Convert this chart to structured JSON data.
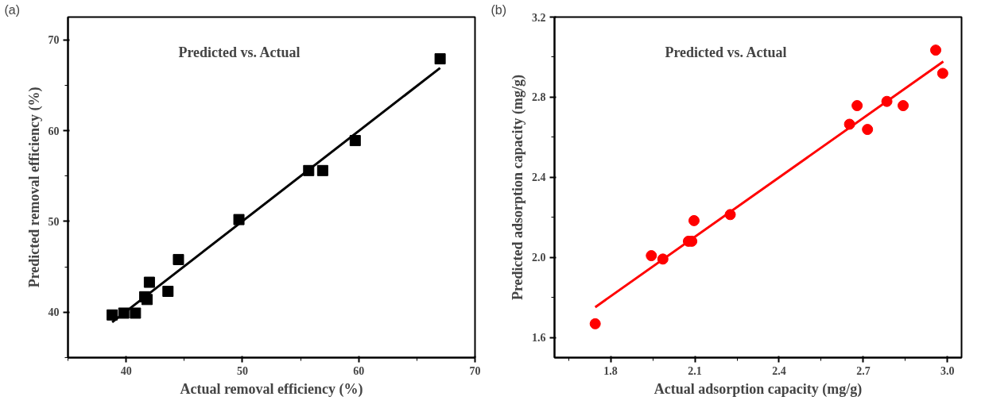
{
  "chart_data": [
    {
      "type": "scatter",
      "title": "Predicted vs. Actual",
      "xlabel": "Actual removal efficiency (%)",
      "ylabel": "Predicted removal efficiency (%)",
      "annotations": [
        "(a)"
      ],
      "grid": false,
      "xlim": [
        35,
        70
      ],
      "ylim": [
        35,
        72.5
      ],
      "xticks": [
        40,
        50,
        60,
        70
      ],
      "yticks": [
        40,
        50,
        60,
        70
      ],
      "series": [
        {
          "color": "#000000",
          "marker": "square",
          "x": [
            38.8,
            39.8,
            40.8,
            41.6,
            41.8,
            42.0,
            43.6,
            44.5,
            49.7,
            55.7,
            56.9,
            59.7,
            67.0
          ],
          "values": [
            39.7,
            39.9,
            39.9,
            41.7,
            41.4,
            43.3,
            42.3,
            45.8,
            50.2,
            55.6,
            55.6,
            58.9,
            67.9
          ]
        },
        {
          "type": "line",
          "color": "#000000",
          "marker": "none",
          "x": [
            38.8,
            67.0
          ],
          "values": [
            38.9,
            66.9
          ]
        }
      ]
    },
    {
      "type": "scatter",
      "title": "Predicted vs. Actual",
      "xlabel": "Actual adsorption capacity (mg/g)",
      "ylabel": "Predicted adsorption capacity (mg/g)",
      "annotations": [
        "(b)"
      ],
      "grid": false,
      "xlim": [
        1.6,
        3.05
      ],
      "ylim": [
        1.5,
        3.2
      ],
      "xticks": [
        {
          "value": 1.8,
          "label": "1.8"
        },
        {
          "value": 2.1,
          "label": "2.1"
        },
        {
          "value": 2.4,
          "label": "2.4"
        },
        {
          "value": 2.7,
          "label": "2.7"
        },
        {
          "value": 3.0,
          "label": "3.0"
        }
      ],
      "yticks": [
        {
          "value": 1.6,
          "label": "1.6"
        },
        {
          "value": 2.0,
          "label": "2.0"
        },
        {
          "value": 2.4,
          "label": "2.4"
        },
        {
          "value": 2.8,
          "label": "2.8"
        },
        {
          "value": 3.2,
          "label": "3.2"
        }
      ],
      "series": [
        {
          "color": "#ff0000",
          "marker": "circle",
          "x": [
            1.745,
            1.945,
            1.986,
            2.077,
            2.089,
            2.097,
            2.226,
            2.651,
            2.678,
            2.715,
            2.784,
            2.842,
            2.958,
            2.983
          ],
          "values": [
            1.669,
            2.009,
            1.992,
            2.081,
            2.081,
            2.184,
            2.214,
            2.665,
            2.758,
            2.639,
            2.779,
            2.758,
            3.035,
            2.919
          ]
        },
        {
          "type": "line",
          "color": "#ff0000",
          "marker": "none",
          "x": [
            1.745,
            2.985
          ],
          "values": [
            1.752,
            2.978
          ]
        }
      ]
    }
  ]
}
